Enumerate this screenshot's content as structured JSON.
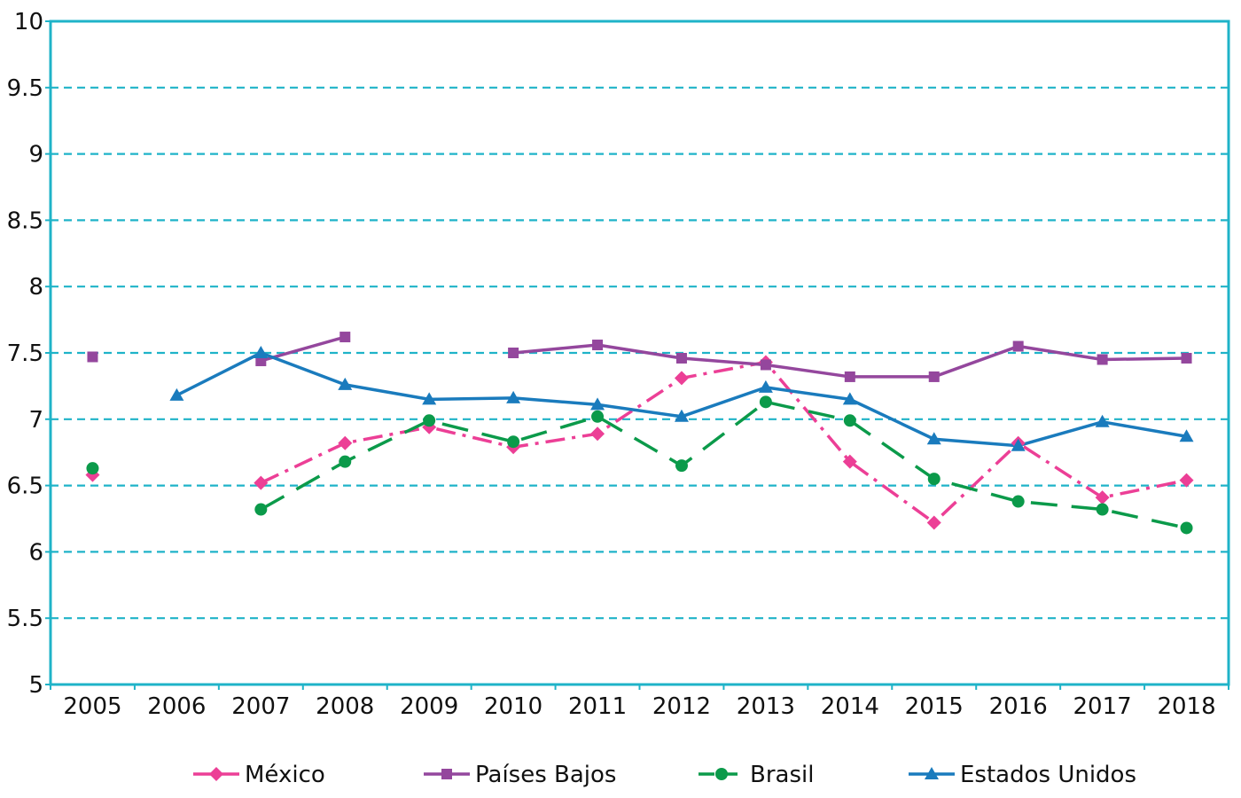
{
  "chart_data": {
    "type": "line",
    "title": "",
    "xlabel": "",
    "ylabel": "",
    "categories": [
      "2005",
      "2006",
      "2007",
      "2008",
      "2009",
      "2010",
      "2011",
      "2012",
      "2013",
      "2014",
      "2015",
      "2016",
      "2017",
      "2018"
    ],
    "ylim": [
      5,
      10
    ],
    "yticks": [
      "5",
      "5.5",
      "6",
      "6.5",
      "7",
      "7.5",
      "8",
      "8.5",
      "9",
      "9.5",
      "10"
    ],
    "grid": true,
    "legend_position": "bottom",
    "series": [
      {
        "name": "México",
        "color": "#ec3f96",
        "marker": "diamond",
        "line_style": "dash-dot",
        "values": [
          6.58,
          null,
          6.52,
          6.82,
          6.94,
          6.79,
          6.89,
          7.31,
          7.43,
          6.68,
          6.22,
          6.82,
          6.41,
          6.54
        ]
      },
      {
        "name": "Países Bajos",
        "color": "#94479d",
        "marker": "square",
        "line_style": "solid",
        "values": [
          7.47,
          null,
          7.44,
          7.62,
          null,
          7.5,
          7.56,
          7.46,
          7.41,
          7.32,
          7.32,
          7.55,
          7.45,
          7.46
        ]
      },
      {
        "name": "Brasil",
        "color": "#0b9a4a",
        "marker": "circle",
        "line_style": "long-dash",
        "values": [
          6.63,
          null,
          6.32,
          6.68,
          6.99,
          6.83,
          7.02,
          6.65,
          7.13,
          6.99,
          6.55,
          6.38,
          6.32,
          6.18
        ]
      },
      {
        "name": "Estados Unidos",
        "color": "#1a7bbd",
        "marker": "triangle",
        "line_style": "solid",
        "values": [
          null,
          7.18,
          7.5,
          7.26,
          7.15,
          7.16,
          7.11,
          7.02,
          7.24,
          7.15,
          6.85,
          6.8,
          6.98,
          6.87
        ]
      }
    ]
  }
}
